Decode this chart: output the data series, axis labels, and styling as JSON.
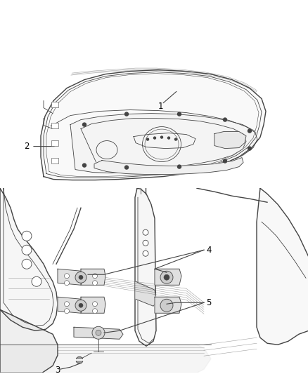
{
  "background_color": "#ffffff",
  "line_color": "#444444",
  "line_color_light": "#888888",
  "label_color": "#000000",
  "figsize": [
    4.39,
    5.33
  ],
  "dpi": 100,
  "label_fontsize": 8.5,
  "fill_color": "#e0e0e0",
  "fill_light": "#eeeeee"
}
